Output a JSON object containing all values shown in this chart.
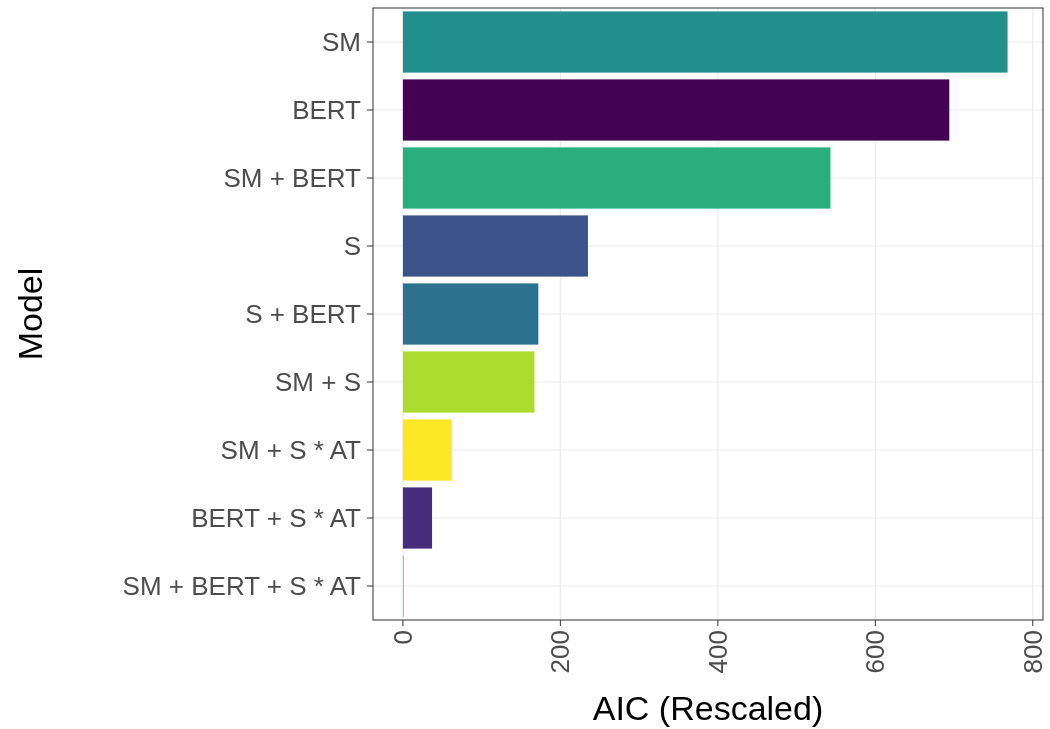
{
  "chart_data": {
    "type": "bar",
    "orientation": "horizontal",
    "xlabel": "AIC (Rescaled)",
    "ylabel": "Model",
    "categories": [
      "SM",
      "BERT",
      "SM + BERT",
      "S",
      "S + BERT",
      "SM + S",
      "SM + S * AT",
      "BERT + S * AT",
      "SM + BERT + S * AT"
    ],
    "values": [
      768,
      694,
      543,
      235,
      172,
      167,
      62,
      37,
      0
    ],
    "colors": [
      "#21908c",
      "#440154",
      "#2aae80",
      "#3b528b",
      "#2c728e",
      "#addc30",
      "#fde725",
      "#472d7b",
      "#5dc863"
    ],
    "xlim": [
      -38,
      813
    ],
    "xticks": [
      0,
      200,
      400,
      600,
      800
    ],
    "grid": true
  }
}
